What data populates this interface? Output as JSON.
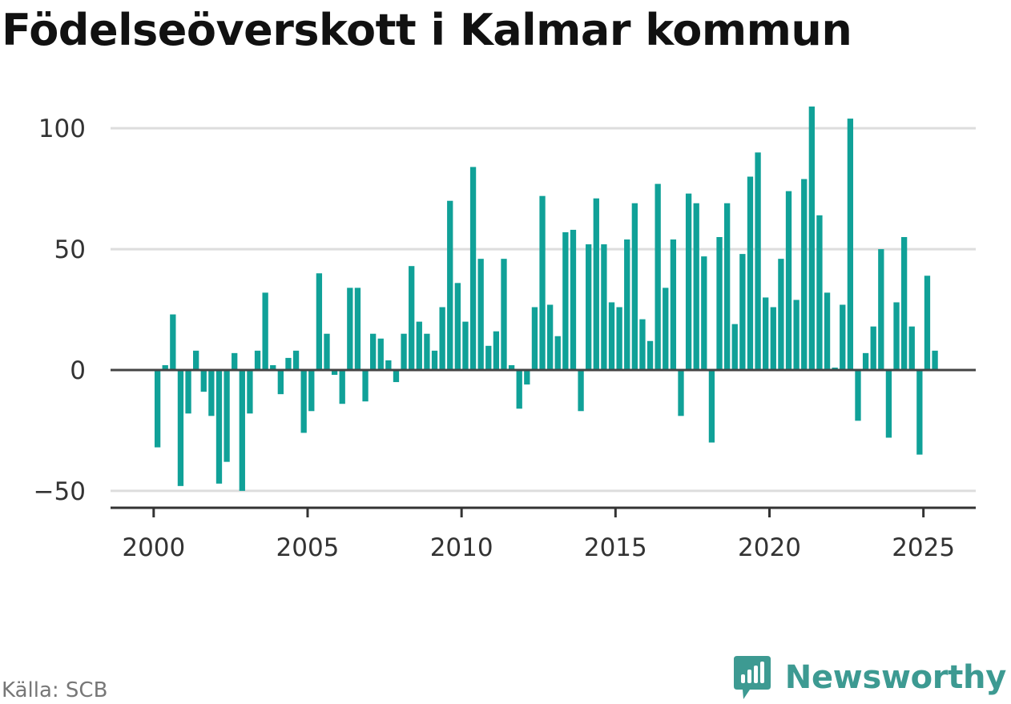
{
  "title": "Födelseöverskott i Kalmar kommun",
  "source": "Källa: SCB",
  "brand": {
    "name": "Newsworthy",
    "icon": "newsworthy-logo-icon",
    "color": "#3d9a92"
  },
  "chart_data": {
    "type": "bar",
    "title": "Födelseöverskott i Kalmar kommun",
    "xlabel": "",
    "ylabel": "",
    "bar_color": "#10a198",
    "grid": true,
    "xlim": [
      1998.6,
      2026.7
    ],
    "ylim": [
      -57,
      110
    ],
    "y_ticks": [
      -50,
      0,
      50,
      100
    ],
    "y_tick_labels": [
      "−50",
      "0",
      "50",
      "100"
    ],
    "x_ticks": [
      2000,
      2005,
      2010,
      2015,
      2020,
      2025
    ],
    "x_tick_labels": [
      "2000",
      "2005",
      "2010",
      "2015",
      "2020",
      "2025"
    ],
    "start_year": 2000,
    "periods_per_year": 4,
    "values": [
      -32,
      2,
      23,
      -48,
      -18,
      8,
      -9,
      -19,
      -47,
      -38,
      7,
      -50,
      -18,
      8,
      32,
      2,
      -10,
      5,
      8,
      -26,
      -17,
      40,
      15,
      -2,
      -14,
      34,
      34,
      -13,
      15,
      13,
      4,
      -5,
      15,
      43,
      20,
      15,
      8,
      26,
      70,
      36,
      20,
      84,
      46,
      10,
      16,
      46,
      2,
      -16,
      -6,
      26,
      72,
      27,
      14,
      57,
      58,
      -17,
      52,
      71,
      52,
      28,
      26,
      54,
      69,
      21,
      12,
      77,
      34,
      54,
      -19,
      73,
      69,
      47,
      -30,
      55,
      69,
      19,
      48,
      80,
      90,
      30,
      26,
      46,
      74,
      29,
      79,
      109,
      64,
      32,
      1,
      27,
      104,
      -21,
      7,
      18,
      50,
      -28,
      28,
      55,
      18,
      -35,
      39,
      8
    ]
  }
}
